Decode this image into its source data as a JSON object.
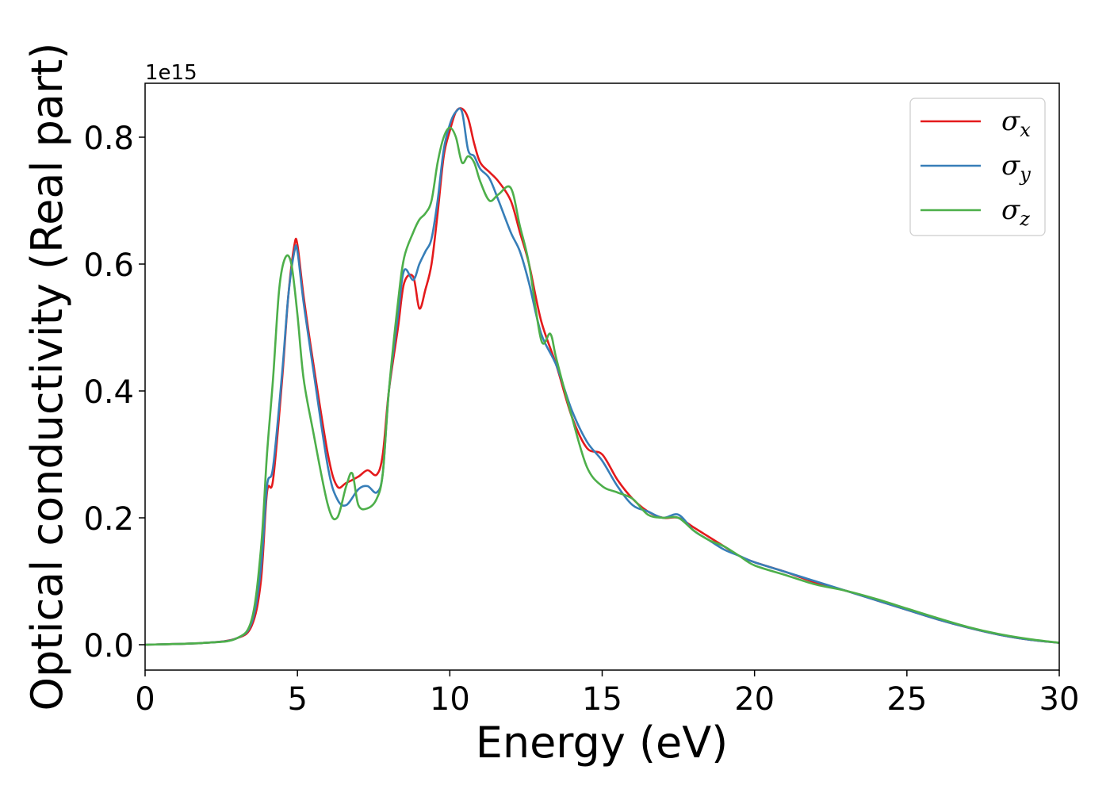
{
  "chart_data": {
    "type": "line",
    "xlabel": "Energy (eV)",
    "ylabel": "Optical conductivity (Real part)",
    "y_offset_text": "1e15",
    "xlim": [
      0,
      30
    ],
    "ylim": [
      -0.04,
      0.885
    ],
    "x_ticks": [
      0,
      5,
      10,
      15,
      20,
      25,
      30
    ],
    "y_ticks": [
      0.0,
      0.2,
      0.4,
      0.6,
      0.8
    ],
    "x_tick_labels": [
      "0",
      "5",
      "10",
      "15",
      "20",
      "25",
      "30"
    ],
    "y_tick_labels": [
      "0.0",
      "0.2",
      "0.4",
      "0.6",
      "0.8"
    ],
    "grid": false,
    "legend_position": "top-right",
    "series": [
      {
        "name": "σx",
        "symbol": "σ",
        "subscript": "x",
        "color": "#e41a1c",
        "x": [
          0,
          2,
          3,
          3.5,
          3.8,
          4,
          4.2,
          4.5,
          4.7,
          4.9,
          5.0,
          5.2,
          5.5,
          6,
          6.3,
          6.6,
          7,
          7.3,
          7.6,
          7.8,
          8,
          8.3,
          8.5,
          8.8,
          9,
          9.2,
          9.4,
          9.6,
          9.8,
          10,
          10.2,
          10.4,
          10.6,
          10.8,
          11,
          11.3,
          11.6,
          12,
          12.3,
          12.6,
          13,
          13.5,
          14,
          14.5,
          15,
          15.5,
          16,
          16.5,
          17,
          17.5,
          18,
          18.5,
          19,
          19.5,
          20,
          21,
          22,
          23,
          24,
          25,
          26,
          27,
          28,
          29,
          30
        ],
        "y": [
          0,
          0.003,
          0.01,
          0.03,
          0.1,
          0.24,
          0.26,
          0.42,
          0.55,
          0.63,
          0.63,
          0.55,
          0.45,
          0.3,
          0.25,
          0.255,
          0.265,
          0.275,
          0.268,
          0.3,
          0.4,
          0.5,
          0.57,
          0.58,
          0.53,
          0.56,
          0.6,
          0.68,
          0.77,
          0.81,
          0.84,
          0.845,
          0.83,
          0.79,
          0.76,
          0.745,
          0.73,
          0.7,
          0.65,
          0.6,
          0.51,
          0.44,
          0.36,
          0.31,
          0.3,
          0.26,
          0.23,
          0.21,
          0.2,
          0.2,
          0.185,
          0.17,
          0.155,
          0.14,
          0.13,
          0.115,
          0.098,
          0.085,
          0.07,
          0.055,
          0.04,
          0.027,
          0.016,
          0.008,
          0.003
        ]
      },
      {
        "name": "σy",
        "symbol": "σ",
        "subscript": "y",
        "color": "#377eb8",
        "x": [
          0,
          2,
          3,
          3.5,
          3.8,
          4,
          4.2,
          4.5,
          4.7,
          4.9,
          5.0,
          5.2,
          5.5,
          6,
          6.3,
          6.6,
          7,
          7.3,
          7.6,
          7.8,
          8,
          8.3,
          8.5,
          8.8,
          9,
          9.2,
          9.4,
          9.6,
          9.8,
          10,
          10.2,
          10.4,
          10.6,
          10.8,
          11,
          11.3,
          11.6,
          12,
          12.3,
          12.6,
          13,
          13.5,
          14,
          14.5,
          15,
          15.5,
          16,
          16.5,
          17,
          17.5,
          18,
          18.5,
          19,
          19.5,
          20,
          21,
          22,
          23,
          24,
          25,
          26,
          27,
          28,
          29,
          30
        ],
        "y": [
          0,
          0.003,
          0.01,
          0.035,
          0.12,
          0.25,
          0.28,
          0.43,
          0.55,
          0.62,
          0.62,
          0.54,
          0.44,
          0.28,
          0.23,
          0.22,
          0.245,
          0.25,
          0.24,
          0.27,
          0.4,
          0.52,
          0.59,
          0.575,
          0.6,
          0.62,
          0.64,
          0.7,
          0.78,
          0.82,
          0.84,
          0.84,
          0.78,
          0.77,
          0.75,
          0.735,
          0.7,
          0.65,
          0.62,
          0.57,
          0.49,
          0.44,
          0.37,
          0.32,
          0.29,
          0.25,
          0.22,
          0.21,
          0.2,
          0.205,
          0.18,
          0.165,
          0.15,
          0.14,
          0.13,
          0.115,
          0.1,
          0.085,
          0.07,
          0.055,
          0.04,
          0.027,
          0.016,
          0.008,
          0.003
        ]
      },
      {
        "name": "σz",
        "symbol": "σ",
        "subscript": "z",
        "color": "#4daf4a",
        "x": [
          0,
          2,
          3,
          3.5,
          3.8,
          4,
          4.2,
          4.4,
          4.6,
          4.8,
          5.0,
          5.2,
          5.5,
          6,
          6.3,
          6.6,
          6.8,
          7,
          7.3,
          7.6,
          7.8,
          8,
          8.3,
          8.5,
          8.8,
          9,
          9.2,
          9.4,
          9.6,
          9.8,
          10,
          10.2,
          10.4,
          10.6,
          10.8,
          11,
          11.3,
          11.6,
          12,
          12.3,
          12.6,
          13,
          13.3,
          13.5,
          14,
          14.5,
          15,
          15.5,
          16,
          16.5,
          17,
          17.5,
          18,
          18.5,
          19,
          19.5,
          20,
          21,
          22,
          23,
          24,
          25,
          26,
          27,
          28,
          29,
          30
        ],
        "y": [
          0,
          0.003,
          0.01,
          0.04,
          0.15,
          0.3,
          0.42,
          0.56,
          0.61,
          0.6,
          0.52,
          0.42,
          0.34,
          0.22,
          0.2,
          0.25,
          0.27,
          0.22,
          0.215,
          0.23,
          0.27,
          0.4,
          0.54,
          0.61,
          0.65,
          0.67,
          0.68,
          0.7,
          0.76,
          0.8,
          0.815,
          0.8,
          0.76,
          0.77,
          0.76,
          0.73,
          0.7,
          0.71,
          0.72,
          0.66,
          0.6,
          0.48,
          0.49,
          0.45,
          0.36,
          0.28,
          0.25,
          0.24,
          0.23,
          0.205,
          0.2,
          0.2,
          0.18,
          0.165,
          0.155,
          0.14,
          0.125,
          0.11,
          0.095,
          0.085,
          0.072,
          0.057,
          0.042,
          0.028,
          0.017,
          0.009,
          0.003
        ]
      }
    ]
  }
}
